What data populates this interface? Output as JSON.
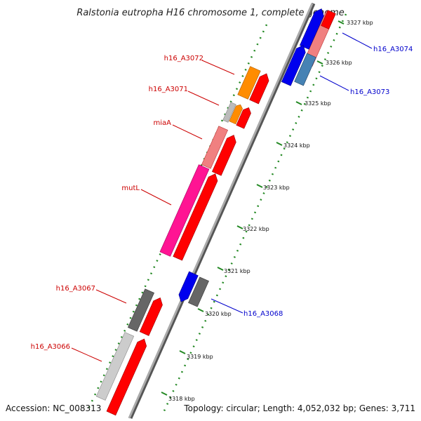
{
  "title": "Ralstonia eutropha H16 chromosome 1, complete genome",
  "footer": {
    "accession": "Accession: NC_008313",
    "topology": "Topology: circular; Length: 4,052,032 bp; Genes: 3,711"
  },
  "colors": {
    "forward_label": "#cc0000",
    "reverse_label": "#0000cc",
    "backbone": "#888888",
    "ruler_tick": "#228822"
  },
  "ruler": {
    "ticks": [
      {
        "label": "3327 kbp"
      },
      {
        "label": "3326 kbp"
      },
      {
        "label": "3325 kbp"
      },
      {
        "label": "3324 kbp"
      },
      {
        "label": "3323 kbp"
      },
      {
        "label": "3322 kbp"
      },
      {
        "label": "3321 kbp"
      },
      {
        "label": "3320 kbp"
      },
      {
        "label": "3319 kbp"
      },
      {
        "label": "3318 kbp"
      }
    ]
  },
  "genes": [
    {
      "name": "h16_A3072",
      "strand": "forward"
    },
    {
      "name": "h16_A3071",
      "strand": "forward"
    },
    {
      "name": "miaA",
      "strand": "forward"
    },
    {
      "name": "mutL",
      "strand": "forward"
    },
    {
      "name": "h16_A3067",
      "strand": "forward"
    },
    {
      "name": "h16_A3066",
      "strand": "forward"
    },
    {
      "name": "h16_A3074",
      "strand": "reverse"
    },
    {
      "name": "h16_A3073",
      "strand": "reverse"
    },
    {
      "name": "h16_A3068",
      "strand": "reverse"
    }
  ]
}
